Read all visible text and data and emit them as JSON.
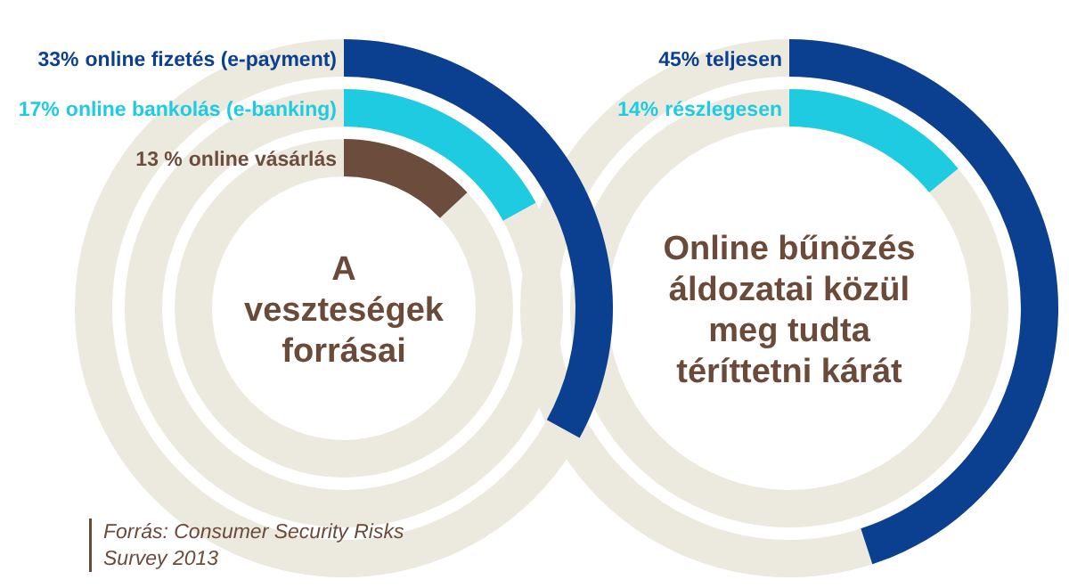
{
  "chart_data": [
    {
      "type": "other",
      "title": "A veszteségek forrásai",
      "categories": [
        "online fizetés (e-payment)",
        "online bankolás (e-banking)",
        "online vásárlás"
      ],
      "values": [
        33,
        17,
        13
      ],
      "value_labels": [
        "33%",
        "17%",
        "13 %"
      ],
      "colors": [
        "#0b3f8f",
        "#1fcbe0",
        "#6b4c3d"
      ],
      "annotations": [
        "Forrás: Consumer Security Risks Survey 2013"
      ]
    },
    {
      "type": "other",
      "title": "Online bűnözés áldozatai közül meg tudta téríttetni kárát",
      "categories": [
        "teljesen",
        "részlegesen"
      ],
      "values": [
        45,
        14
      ],
      "value_labels": [
        "45%",
        "14%"
      ],
      "colors": [
        "#0b3f8f",
        "#1fcbe0"
      ]
    }
  ]
}
